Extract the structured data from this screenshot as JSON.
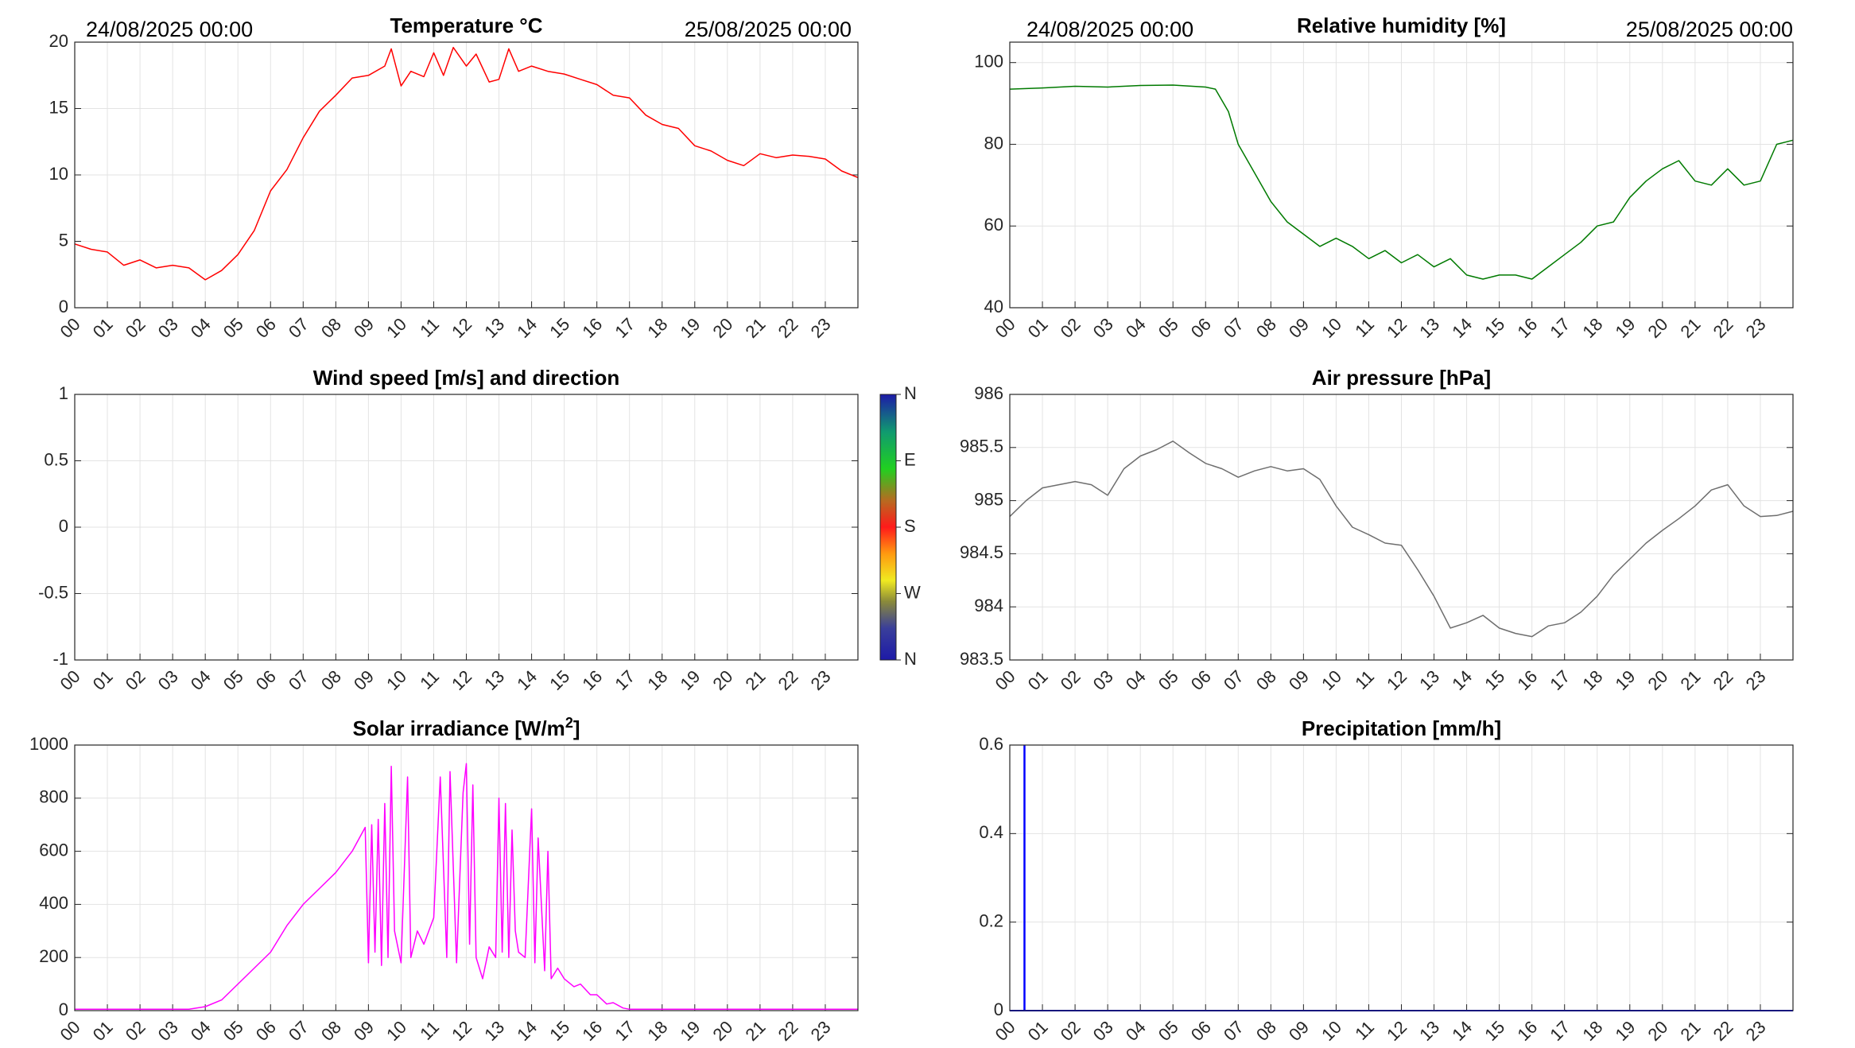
{
  "colors": {
    "temperature": "#ff0000",
    "humidity": "#007a00",
    "pressure": "#6e6e6e",
    "irradiance": "#ff00ff",
    "precipitation": "#0000ff",
    "grid": "#e3e3e3",
    "axis": "#262626"
  },
  "header": {
    "start_date": "24/08/2025 00:00",
    "end_date": "25/08/2025 00:00"
  },
  "hour_labels": [
    "00",
    "01",
    "02",
    "03",
    "04",
    "05",
    "06",
    "07",
    "08",
    "09",
    "10",
    "11",
    "12",
    "13",
    "14",
    "15",
    "16",
    "17",
    "18",
    "19",
    "20",
    "21",
    "22",
    "23"
  ],
  "colorbar": {
    "labels": [
      "N",
      "W",
      "S",
      "E",
      "N"
    ]
  },
  "chart_data": [
    {
      "id": "temperature",
      "type": "line",
      "title": "Temperature °C",
      "xlim": [
        0,
        24
      ],
      "ylim": [
        0,
        20
      ],
      "yticks": [
        0,
        5,
        10,
        15,
        20
      ],
      "ytick_labels": [
        "0",
        "5",
        "10",
        "15",
        "20"
      ],
      "x": [
        0,
        0.5,
        1,
        1.5,
        2,
        2.5,
        3,
        3.5,
        4,
        4.5,
        5,
        5.5,
        6,
        6.5,
        7,
        7.5,
        8,
        8.5,
        9,
        9.5,
        9.7,
        10,
        10.3,
        10.7,
        11,
        11.3,
        11.6,
        12,
        12.3,
        12.7,
        13,
        13.3,
        13.6,
        14,
        14.5,
        15,
        15.5,
        16,
        16.5,
        17,
        17.5,
        18,
        18.5,
        19,
        19.5,
        20,
        20.5,
        21,
        21.5,
        22,
        22.5,
        23,
        23.5,
        24
      ],
      "values": [
        4.8,
        4.4,
        4.2,
        3.2,
        3.6,
        3.0,
        3.2,
        3.0,
        2.1,
        2.8,
        4.0,
        5.8,
        8.8,
        10.4,
        12.8,
        14.8,
        16.0,
        17.3,
        17.5,
        18.2,
        19.5,
        16.7,
        17.8,
        17.4,
        19.2,
        17.5,
        19.6,
        18.2,
        19.1,
        17.0,
        17.2,
        19.5,
        17.8,
        18.2,
        17.8,
        17.6,
        17.2,
        16.8,
        16.0,
        15.8,
        14.5,
        13.8,
        13.5,
        12.2,
        11.8,
        11.1,
        10.7,
        11.6,
        11.3,
        11.5,
        11.4,
        11.2,
        10.3,
        9.8
      ]
    },
    {
      "id": "humidity",
      "type": "line",
      "title": "Relative humidity [%]",
      "xlim": [
        0,
        24
      ],
      "ylim": [
        40,
        105
      ],
      "yticks": [
        40,
        60,
        80,
        100
      ],
      "ytick_labels": [
        "40",
        "60",
        "80",
        "100"
      ],
      "x": [
        0,
        1,
        2,
        3,
        4,
        5,
        6,
        6.3,
        6.7,
        7,
        7.5,
        8,
        8.5,
        9,
        9.5,
        10,
        10.5,
        11,
        11.5,
        12,
        12.5,
        13,
        13.5,
        14,
        14.5,
        15,
        15.5,
        16,
        16.5,
        17,
        17.5,
        18,
        18.5,
        19,
        19.5,
        20,
        20.5,
        21,
        21.5,
        22,
        22.5,
        23,
        23.5,
        24
      ],
      "values": [
        93.5,
        93.8,
        94.2,
        94.0,
        94.4,
        94.5,
        94.0,
        93.5,
        88,
        80,
        73,
        66,
        61,
        58,
        55,
        57,
        55,
        52,
        54,
        51,
        53,
        50,
        52,
        48,
        47,
        48,
        48,
        47,
        50,
        53,
        56,
        60,
        61,
        67,
        71,
        74,
        76,
        71,
        70,
        74,
        70,
        71,
        80,
        81
      ]
    },
    {
      "id": "wind",
      "type": "scatter",
      "title": "Wind speed [m/s] and direction",
      "xlim": [
        0,
        24
      ],
      "ylim": [
        -1,
        1
      ],
      "yticks": [
        -1,
        -0.5,
        0,
        0.5,
        1
      ],
      "ytick_labels": [
        "-1",
        "-0.5",
        "0",
        "0.5",
        "1"
      ],
      "x": [],
      "values": []
    },
    {
      "id": "pressure",
      "type": "line",
      "title": "Air pressure [hPa]",
      "xlim": [
        0,
        24
      ],
      "ylim": [
        983.5,
        986
      ],
      "yticks": [
        983.5,
        984,
        984.5,
        985,
        985.5,
        986
      ],
      "ytick_labels": [
        "983.5",
        "984",
        "984.5",
        "985",
        "985.5",
        "986"
      ],
      "x": [
        0,
        0.5,
        1,
        1.5,
        2,
        2.5,
        3,
        3.5,
        4,
        4.5,
        5,
        5.5,
        6,
        6.5,
        7,
        7.5,
        8,
        8.5,
        9,
        9.5,
        10,
        10.5,
        11,
        11.5,
        12,
        12.5,
        13,
        13.5,
        14,
        14.5,
        15,
        15.5,
        16,
        16.5,
        17,
        17.5,
        18,
        18.5,
        19,
        19.5,
        20,
        20.5,
        21,
        21.5,
        22,
        22.5,
        23,
        23.5,
        24
      ],
      "values": [
        984.85,
        985.0,
        985.12,
        985.15,
        985.18,
        985.15,
        985.05,
        985.3,
        985.42,
        985.48,
        985.56,
        985.45,
        985.35,
        985.3,
        985.22,
        985.28,
        985.32,
        985.28,
        985.3,
        985.2,
        984.95,
        984.75,
        984.68,
        984.6,
        984.58,
        984.35,
        984.1,
        983.8,
        983.85,
        983.92,
        983.8,
        983.75,
        983.72,
        983.82,
        983.85,
        983.95,
        984.1,
        984.3,
        984.45,
        984.6,
        984.72,
        984.83,
        984.95,
        985.1,
        985.15,
        984.95,
        984.85,
        984.86,
        984.9
      ]
    },
    {
      "id": "irradiance",
      "type": "line",
      "title": "Solar irradiance [W/m",
      "title_superscript": "2",
      "title_suffix": "]",
      "xlim": [
        0,
        24
      ],
      "ylim": [
        0,
        1000
      ],
      "yticks": [
        0,
        200,
        400,
        600,
        800,
        1000
      ],
      "ytick_labels": [
        "0",
        "200",
        "400",
        "600",
        "800",
        "1000"
      ],
      "x": [
        0,
        3.5,
        4,
        4.5,
        5,
        5.5,
        6,
        6.5,
        7,
        7.5,
        8,
        8.5,
        8.9,
        9.0,
        9.1,
        9.2,
        9.3,
        9.4,
        9.5,
        9.6,
        9.7,
        9.8,
        10,
        10.2,
        10.3,
        10.5,
        10.7,
        11,
        11.2,
        11.4,
        11.5,
        11.7,
        11.9,
        12,
        12.1,
        12.2,
        12.3,
        12.5,
        12.7,
        12.9,
        13,
        13.1,
        13.2,
        13.3,
        13.4,
        13.5,
        13.6,
        13.8,
        14,
        14.1,
        14.2,
        14.4,
        14.5,
        14.6,
        14.8,
        15,
        15.3,
        15.5,
        15.8,
        16,
        16.3,
        16.5,
        16.8,
        17,
        17.3,
        17.6,
        18,
        18.5,
        19,
        20,
        21,
        22,
        23,
        24
      ],
      "values": [
        5,
        5,
        15,
        40,
        100,
        160,
        220,
        320,
        400,
        460,
        520,
        600,
        690,
        180,
        700,
        220,
        720,
        170,
        780,
        200,
        920,
        300,
        180,
        880,
        200,
        300,
        250,
        350,
        880,
        200,
        900,
        180,
        820,
        930,
        250,
        850,
        200,
        120,
        240,
        200,
        800,
        220,
        780,
        200,
        680,
        300,
        220,
        200,
        760,
        180,
        650,
        150,
        600,
        120,
        160,
        120,
        90,
        100,
        60,
        60,
        25,
        30,
        10,
        5,
        5,
        5,
        5,
        5,
        5,
        5,
        5,
        5,
        5,
        5
      ]
    },
    {
      "id": "precipitation",
      "type": "bar",
      "title": "Precipitation [mm/h]",
      "xlim": [
        0,
        24
      ],
      "ylim": [
        0,
        0.6
      ],
      "yticks": [
        0,
        0.2,
        0.4,
        0.6
      ],
      "ytick_labels": [
        "0",
        "0.2",
        "0.4",
        "0.6"
      ],
      "x": [
        0.45
      ],
      "values": [
        0.6
      ]
    }
  ]
}
